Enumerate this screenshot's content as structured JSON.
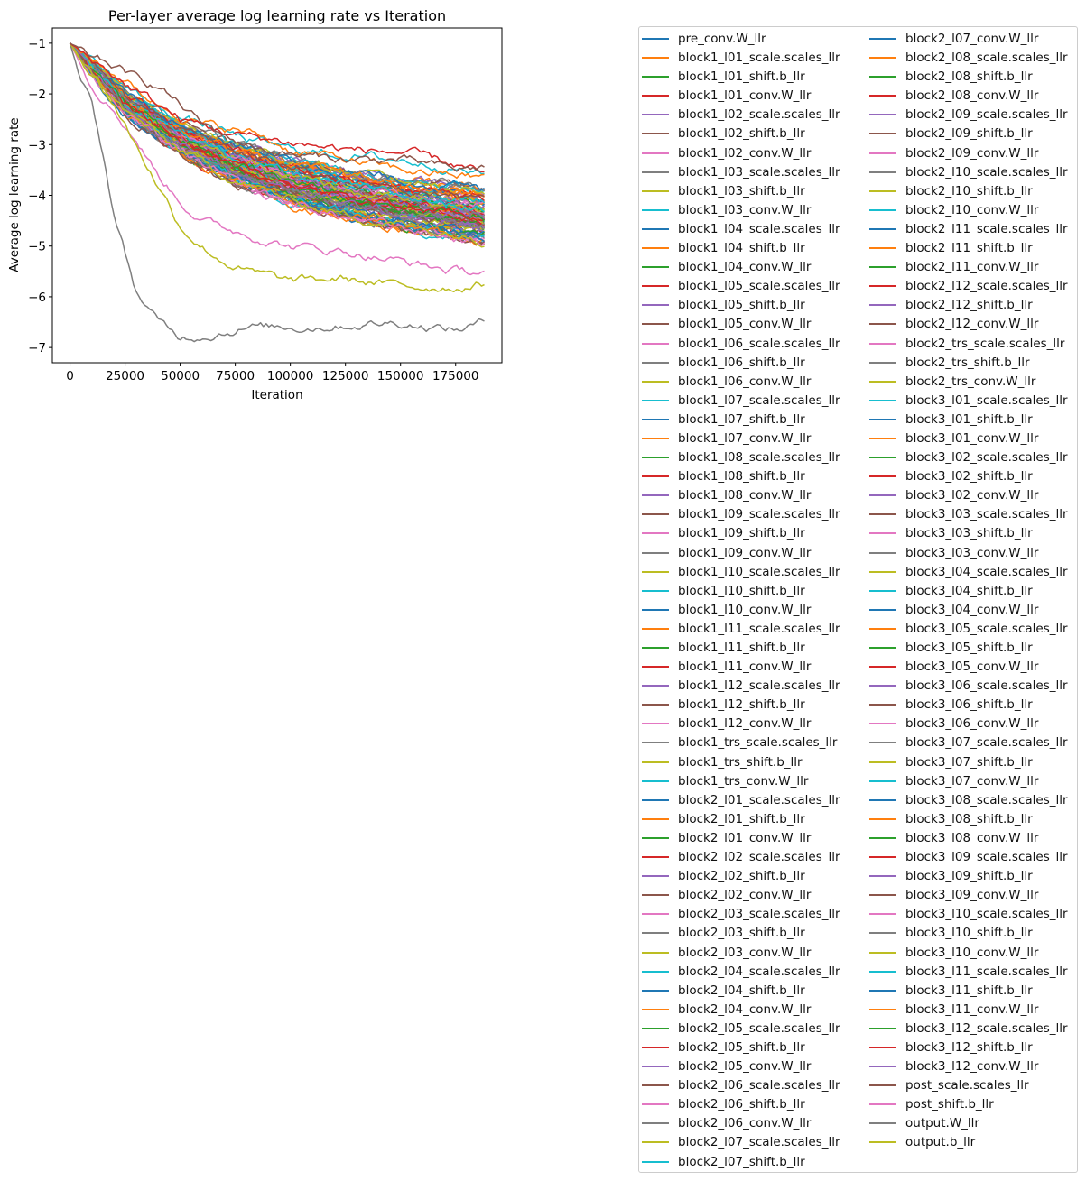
{
  "chart_data": {
    "type": "line",
    "title": "Per-layer average log learning rate vs Iteration",
    "xlabel": "Iteration",
    "ylabel": "Average log learning rate",
    "xlim": [
      -8000,
      196000
    ],
    "ylim": [
      -7.3,
      -0.7
    ],
    "xticks": [
      0,
      25000,
      50000,
      75000,
      100000,
      125000,
      150000,
      175000
    ],
    "yticks": [
      -1,
      -2,
      -3,
      -4,
      -5,
      -6,
      -7
    ],
    "grid": false,
    "legend_position": "outside-right",
    "legend_columns": 2,
    "colors": [
      "#1f77b4",
      "#ff7f0e",
      "#2ca02c",
      "#d62728",
      "#9467bd",
      "#8c564b",
      "#e377c2",
      "#7f7f7f",
      "#bcbd22",
      "#17becf"
    ],
    "x_end": 188000,
    "series_names": [
      "pre_conv.W_llr",
      "block1_l01_scale.scales_llr",
      "block1_l01_shift.b_llr",
      "block1_l01_conv.W_llr",
      "block1_l02_scale.scales_llr",
      "block1_l02_shift.b_llr",
      "block1_l02_conv.W_llr",
      "block1_l03_scale.scales_llr",
      "block1_l03_shift.b_llr",
      "block1_l03_conv.W_llr",
      "block1_l04_scale.scales_llr",
      "block1_l04_shift.b_llr",
      "block1_l04_conv.W_llr",
      "block1_l05_scale.scales_llr",
      "block1_l05_shift.b_llr",
      "block1_l05_conv.W_llr",
      "block1_l06_scale.scales_llr",
      "block1_l06_shift.b_llr",
      "block1_l06_conv.W_llr",
      "block1_l07_scale.scales_llr",
      "block1_l07_shift.b_llr",
      "block1_l07_conv.W_llr",
      "block1_l08_scale.scales_llr",
      "block1_l08_shift.b_llr",
      "block1_l08_conv.W_llr",
      "block1_l09_scale.scales_llr",
      "block1_l09_shift.b_llr",
      "block1_l09_conv.W_llr",
      "block1_l10_scale.scales_llr",
      "block1_l10_shift.b_llr",
      "block1_l10_conv.W_llr",
      "block1_l11_scale.scales_llr",
      "block1_l11_shift.b_llr",
      "block1_l11_conv.W_llr",
      "block1_l12_scale.scales_llr",
      "block1_l12_shift.b_llr",
      "block1_l12_conv.W_llr",
      "block1_trs_scale.scales_llr",
      "block1_trs_shift.b_llr",
      "block1_trs_conv.W_llr",
      "block2_l01_scale.scales_llr",
      "block2_l01_shift.b_llr",
      "block2_l01_conv.W_llr",
      "block2_l02_scale.scales_llr",
      "block2_l02_shift.b_llr",
      "block2_l02_conv.W_llr",
      "block2_l03_scale.scales_llr",
      "block2_l03_shift.b_llr",
      "block2_l03_conv.W_llr",
      "block2_l04_scale.scales_llr",
      "block2_l04_shift.b_llr",
      "block2_l04_conv.W_llr",
      "block2_l05_scale.scales_llr",
      "block2_l05_shift.b_llr",
      "block2_l05_conv.W_llr",
      "block2_l06_scale.scales_llr",
      "block2_l06_shift.b_llr",
      "block2_l06_conv.W_llr",
      "block2_l07_scale.scales_llr",
      "block2_l07_shift.b_llr",
      "block2_l07_conv.W_llr",
      "block2_l08_scale.scales_llr",
      "block2_l08_shift.b_llr",
      "block2_l08_conv.W_llr",
      "block2_l09_scale.scales_llr",
      "block2_l09_shift.b_llr",
      "block2_l09_conv.W_llr",
      "block2_l10_scale.scales_llr",
      "block2_l10_shift.b_llr",
      "block2_l10_conv.W_llr",
      "block2_l11_scale.scales_llr",
      "block2_l11_shift.b_llr",
      "block2_l11_conv.W_llr",
      "block2_l12_scale.scales_llr",
      "block2_l12_shift.b_llr",
      "block2_l12_conv.W_llr",
      "block2_trs_scale.scales_llr",
      "block2_trs_shift.b_llr",
      "block2_trs_conv.W_llr",
      "block3_l01_scale.scales_llr",
      "block3_l01_shift.b_llr",
      "block3_l01_conv.W_llr",
      "block3_l02_scale.scales_llr",
      "block3_l02_shift.b_llr",
      "block3_l02_conv.W_llr",
      "block3_l03_scale.scales_llr",
      "block3_l03_shift.b_llr",
      "block3_l03_conv.W_llr",
      "block3_l04_scale.scales_llr",
      "block3_l04_shift.b_llr",
      "block3_l04_conv.W_llr",
      "block3_l05_scale.scales_llr",
      "block3_l05_shift.b_llr",
      "block3_l05_conv.W_llr",
      "block3_l06_scale.scales_llr",
      "block3_l06_shift.b_llr",
      "block3_l06_conv.W_llr",
      "block3_l07_scale.scales_llr",
      "block3_l07_shift.b_llr",
      "block3_l07_conv.W_llr",
      "block3_l08_scale.scales_llr",
      "block3_l08_shift.b_llr",
      "block3_l08_conv.W_llr",
      "block3_l09_scale.scales_llr",
      "block3_l09_shift.b_llr",
      "block3_l09_conv.W_llr",
      "block3_l10_scale.scales_llr",
      "block3_l10_shift.b_llr",
      "block3_l10_conv.W_llr",
      "block3_l11_scale.scales_llr",
      "block3_l11_shift.b_llr",
      "block3_l11_conv.W_llr",
      "block3_l12_scale.scales_llr",
      "block3_l12_shift.b_llr",
      "block3_l12_conv.W_llr",
      "post_scale.scales_llr",
      "post_shift.b_llr",
      "output.W_llr",
      "output.b_llr"
    ],
    "highlighted_series": [
      {
        "name": "block1_trs_scale.scales_llr",
        "x": [
          0,
          5000,
          10000,
          15000,
          20000,
          30000,
          40000,
          50000,
          60000,
          80000,
          100000,
          125000,
          150000,
          175000,
          188000
        ],
        "values": [
          -1.0,
          -1.8,
          -2.2,
          -3.2,
          -4.4,
          -5.9,
          -6.5,
          -6.8,
          -6.75,
          -6.6,
          -6.6,
          -6.55,
          -6.5,
          -6.65,
          -6.5
        ]
      },
      {
        "name": "block1_trs_shift.b_llr",
        "x": [
          0,
          10000,
          20000,
          30000,
          40000,
          50000,
          60000,
          70000,
          80000,
          100000,
          125000,
          150000,
          175000,
          188000
        ],
        "values": [
          -1.0,
          -1.6,
          -2.2,
          -3.0,
          -3.8,
          -4.6,
          -5.0,
          -5.3,
          -5.5,
          -5.7,
          -5.65,
          -5.8,
          -5.8,
          -5.75
        ]
      },
      {
        "name": "block1_l12_conv.W_llr",
        "x": [
          0,
          10000,
          20000,
          30000,
          40000,
          50000,
          60000,
          75000,
          100000,
          125000,
          150000,
          175000,
          188000
        ],
        "values": [
          -1.0,
          -1.8,
          -2.3,
          -2.9,
          -3.6,
          -4.1,
          -4.5,
          -4.7,
          -5.0,
          -5.1,
          -5.3,
          -5.5,
          -5.5
        ]
      },
      {
        "name": "block1_trs_conv.W_llr",
        "x": [
          0,
          10000,
          20000,
          40000,
          60000,
          80000,
          100000,
          125000,
          150000,
          175000,
          188000
        ],
        "values": [
          -1.0,
          -1.3,
          -1.7,
          -2.3,
          -2.6,
          -2.9,
          -3.1,
          -3.2,
          -3.3,
          -3.45,
          -3.6
        ]
      },
      {
        "name": "block2_l01_shift.b_llr",
        "x": [
          0,
          10000,
          20000,
          40000,
          60000,
          85000,
          100000,
          125000,
          150000,
          175000,
          188000
        ],
        "values": [
          -1.0,
          -1.3,
          -1.6,
          -2.2,
          -2.6,
          -2.8,
          -3.1,
          -3.3,
          -3.5,
          -3.6,
          -3.65
        ]
      },
      {
        "name": "block2_l02_conv.W_llr",
        "x": [
          0,
          10000,
          20000,
          30000,
          40000,
          50000,
          60000,
          80000,
          100000,
          125000,
          150000,
          175000,
          188000
        ],
        "values": [
          -1.0,
          -1.3,
          -1.45,
          -1.7,
          -1.85,
          -2.2,
          -2.6,
          -3.0,
          -3.2,
          -3.3,
          -3.3,
          -3.5,
          -3.45
        ]
      },
      {
        "name": "block2_l02_scale.scales_llr",
        "x": [
          0,
          25000,
          50000,
          75000,
          100000,
          125000,
          150000,
          175000,
          188000
        ],
        "values": [
          -1.0,
          -1.8,
          -2.5,
          -2.8,
          -2.95,
          -3.1,
          -3.15,
          -3.4,
          -3.6
        ]
      }
    ],
    "band_top": {
      "x": [
        0,
        10000,
        25000,
        50000,
        75000,
        100000,
        125000,
        150000,
        175000,
        188000
      ],
      "values": [
        -1.0,
        -1.4,
        -2.0,
        -2.6,
        -3.0,
        -3.3,
        -3.5,
        -3.7,
        -3.8,
        -3.9
      ]
    },
    "band_bottom": {
      "x": [
        0,
        10000,
        25000,
        50000,
        75000,
        100000,
        125000,
        150000,
        175000,
        188000
      ],
      "values": [
        -1.0,
        -1.6,
        -2.4,
        -3.2,
        -3.8,
        -4.2,
        -4.5,
        -4.7,
        -4.9,
        -5.0
      ]
    }
  }
}
